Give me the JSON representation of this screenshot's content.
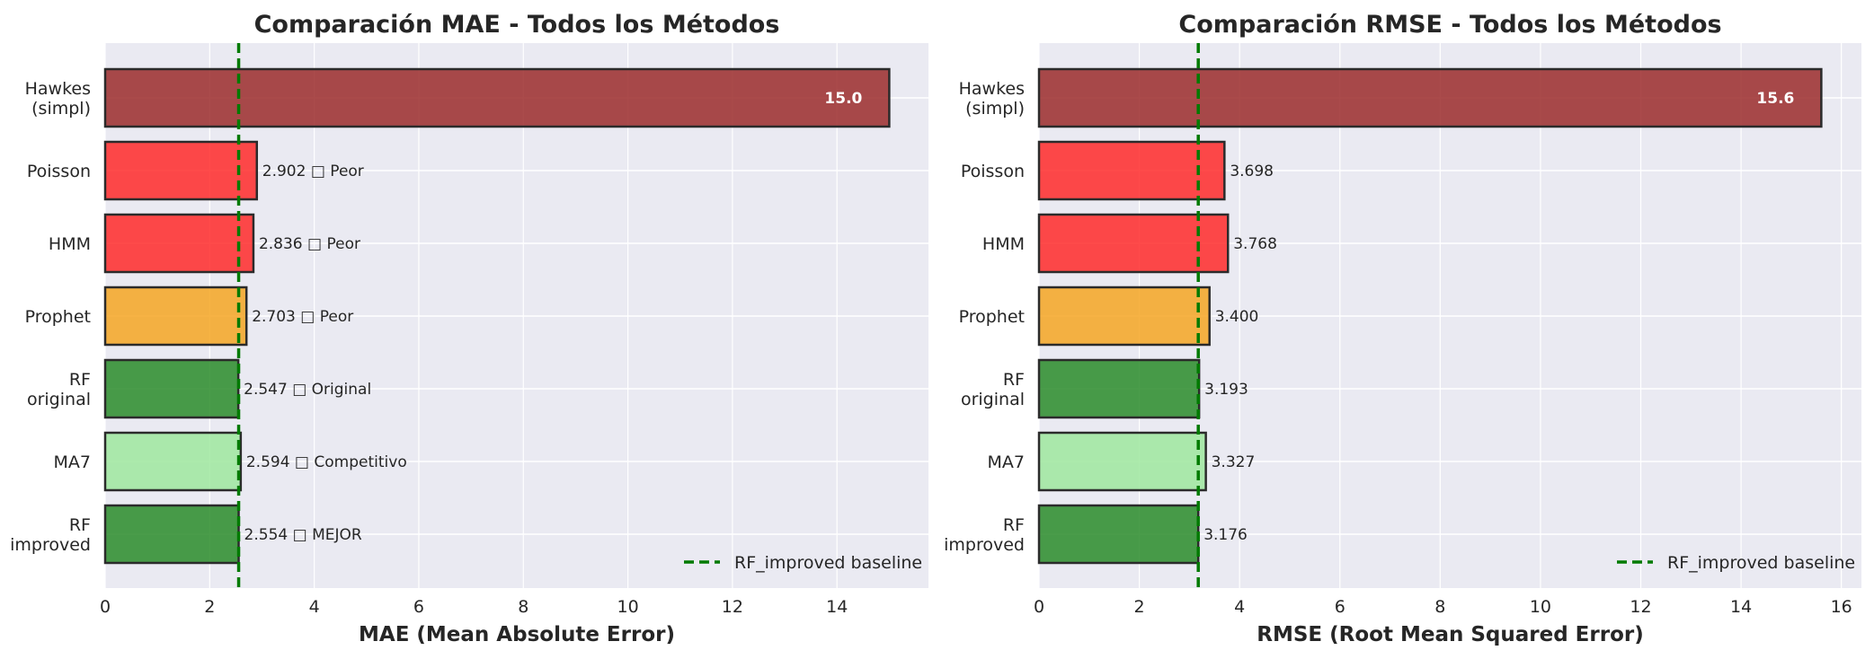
{
  "chart_data": [
    {
      "type": "bar",
      "orientation": "horizontal",
      "title": "Comparación MAE - Todos los Métodos",
      "xlabel": "MAE (Mean Absolute Error)",
      "xlim": [
        0,
        15.75
      ],
      "xticks": [
        "0",
        "2",
        "4",
        "6",
        "8",
        "10",
        "12",
        "14"
      ],
      "categories": [
        "Hawkes\n(simpl)",
        "Poisson",
        "HMM",
        "Prophet",
        "RF\noriginal",
        "MA7",
        "RF\nimproved"
      ],
      "values": [
        15.0,
        2.902,
        2.836,
        2.703,
        2.547,
        2.594,
        2.554
      ],
      "value_labels": [
        "15.0",
        "2.902 □ Peor",
        "2.836 □ Peor",
        "2.703 □ Peor",
        "2.547 □ Original",
        "2.594 □ Competitivo",
        "2.554 □ MEJOR"
      ],
      "bar_colors": [
        "#9b2c2c",
        "#ff2a2a",
        "#ff2a2a",
        "#f5a623",
        "#2a8c2a",
        "#9fe89f",
        "#2a8c2a"
      ],
      "baseline": {
        "value": 2.554,
        "label": "RF_improved baseline",
        "color": "#007a00"
      },
      "legend": "lower right",
      "grid": true
    },
    {
      "type": "bar",
      "orientation": "horizontal",
      "title": "Comparación RMSE - Todos los Métodos",
      "xlabel": "RMSE (Root Mean Squared Error)",
      "xlim": [
        0,
        16.4
      ],
      "xticks": [
        "0",
        "2",
        "4",
        "6",
        "8",
        "10",
        "12",
        "14",
        "16"
      ],
      "categories": [
        "Hawkes\n(simpl)",
        "Poisson",
        "HMM",
        "Prophet",
        "RF\noriginal",
        "MA7",
        "RF\nimproved"
      ],
      "values": [
        15.6,
        3.698,
        3.768,
        3.4,
        3.193,
        3.327,
        3.176
      ],
      "value_labels": [
        "15.6",
        "3.698",
        "3.768",
        "3.400",
        "3.193",
        "3.327",
        "3.176"
      ],
      "bar_colors": [
        "#9b2c2c",
        "#ff2a2a",
        "#ff2a2a",
        "#f5a623",
        "#2a8c2a",
        "#9fe89f",
        "#2a8c2a"
      ],
      "baseline": {
        "value": 3.176,
        "label": "RF_improved baseline",
        "color": "#007a00"
      },
      "legend": "lower right",
      "grid": true
    }
  ]
}
